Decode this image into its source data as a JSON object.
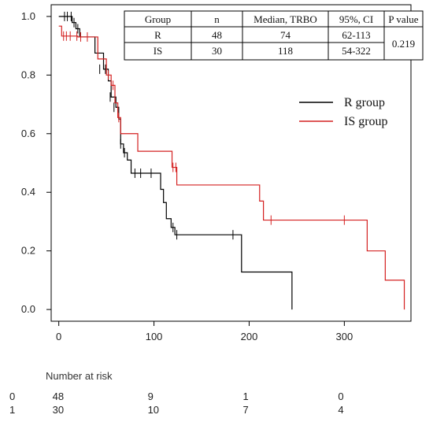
{
  "chart_data": {
    "type": "line",
    "title": "",
    "xlabel": "",
    "ylabel": "",
    "xlim": [
      -8,
      370
    ],
    "ylim": [
      -0.04,
      1.04
    ],
    "x_ticks": [
      0,
      100,
      200,
      300
    ],
    "y_ticks": [
      "0.0",
      "0.2",
      "0.4",
      "0.6",
      "0.8",
      "1.0"
    ],
    "grid": false,
    "legend": {
      "placement": "right",
      "entries": [
        "R group",
        "IS group"
      ]
    },
    "series": [
      {
        "name": "R group",
        "color": "#000000",
        "steps": [
          [
            0,
            1.0
          ],
          [
            14,
            0.979
          ],
          [
            18,
            0.958
          ],
          [
            22,
            0.93
          ],
          [
            38,
            0.875
          ],
          [
            47,
            0.82
          ],
          [
            52,
            0.78
          ],
          [
            55,
            0.725
          ],
          [
            60,
            0.69
          ],
          [
            63,
            0.65
          ],
          [
            65,
            0.565
          ],
          [
            68,
            0.535
          ],
          [
            72,
            0.51
          ],
          [
            76,
            0.465
          ],
          [
            107,
            0.41
          ],
          [
            110,
            0.365
          ],
          [
            113,
            0.31
          ],
          [
            118,
            0.28
          ],
          [
            122,
            0.255
          ],
          [
            192,
            0.128
          ],
          [
            245,
            0.0
          ]
        ],
        "end_x": 245,
        "censored": [
          [
            6,
            1.0
          ],
          [
            9,
            1.0
          ],
          [
            13,
            1.0
          ],
          [
            16,
            0.979
          ],
          [
            20,
            0.958
          ],
          [
            43,
            0.82
          ],
          [
            49,
            0.82
          ],
          [
            54,
            0.725
          ],
          [
            58,
            0.69
          ],
          [
            65,
            0.565
          ],
          [
            69,
            0.535
          ],
          [
            80,
            0.465
          ],
          [
            86,
            0.465
          ],
          [
            97,
            0.465
          ],
          [
            120,
            0.28
          ],
          [
            124,
            0.255
          ],
          [
            183,
            0.255
          ]
        ]
      },
      {
        "name": "IS group",
        "color": "#d42020",
        "steps": [
          [
            0,
            0.967
          ],
          [
            3,
            0.933
          ],
          [
            20,
            0.93
          ],
          [
            41,
            0.855
          ],
          [
            50,
            0.8
          ],
          [
            55,
            0.765
          ],
          [
            59,
            0.705
          ],
          [
            62,
            0.655
          ],
          [
            65,
            0.6
          ],
          [
            83,
            0.54
          ],
          [
            119,
            0.485
          ],
          [
            124,
            0.425
          ],
          [
            211,
            0.37
          ],
          [
            215,
            0.305
          ],
          [
            324,
            0.2
          ],
          [
            343,
            0.1
          ],
          [
            363,
            0.0
          ]
        ],
        "end_x": 363,
        "censored": [
          [
            5,
            0.933
          ],
          [
            8,
            0.933
          ],
          [
            12,
            0.933
          ],
          [
            19,
            0.933
          ],
          [
            23,
            0.93
          ],
          [
            30,
            0.93
          ],
          [
            52,
            0.8
          ],
          [
            57,
            0.765
          ],
          [
            63,
            0.655
          ],
          [
            120,
            0.485
          ],
          [
            123,
            0.485
          ],
          [
            223,
            0.305
          ],
          [
            300,
            0.305
          ]
        ]
      }
    ],
    "summary_table": {
      "headers": [
        "Group",
        "n",
        "Median, TRBO",
        "95%, CI",
        "P value"
      ],
      "rows": [
        [
          "R",
          "48",
          "74",
          "62-113"
        ],
        [
          "IS",
          "30",
          "118",
          "54-322"
        ]
      ],
      "p_value": "0.219"
    },
    "risk_table": {
      "title": "Number at risk",
      "rows": [
        {
          "group": "0",
          "counts": [
            "48",
            "9",
            "1",
            "0"
          ]
        },
        {
          "group": "1",
          "counts": [
            "30",
            "10",
            "7",
            "4"
          ]
        }
      ]
    }
  }
}
